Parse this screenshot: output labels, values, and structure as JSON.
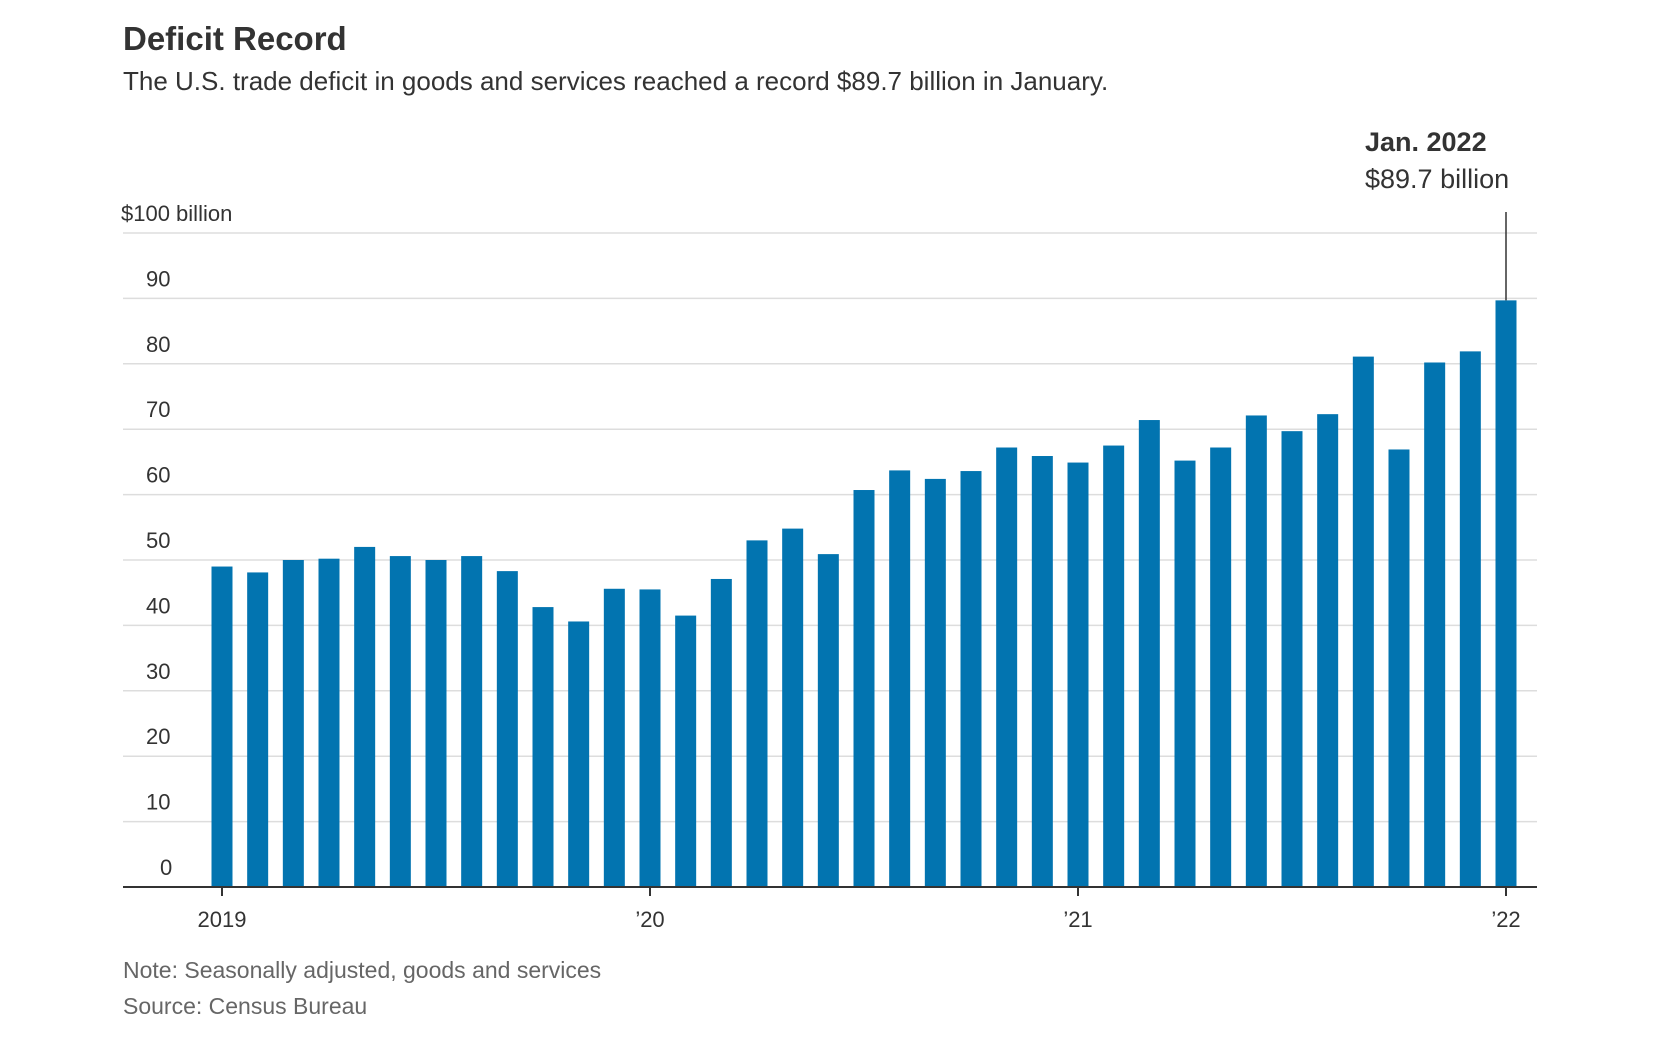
{
  "chart_data": {
    "type": "bar",
    "title": "Deficit Record",
    "subtitle": "The U.S. trade deficit in goods and services reached a record $89.7 billion in January.",
    "x": [
      "2019-01",
      "2019-02",
      "2019-03",
      "2019-04",
      "2019-05",
      "2019-06",
      "2019-07",
      "2019-08",
      "2019-09",
      "2019-10",
      "2019-11",
      "2019-12",
      "2020-01",
      "2020-02",
      "2020-03",
      "2020-04",
      "2020-05",
      "2020-06",
      "2020-07",
      "2020-08",
      "2020-09",
      "2020-10",
      "2020-11",
      "2020-12",
      "2021-01",
      "2021-02",
      "2021-03",
      "2021-04",
      "2021-05",
      "2021-06",
      "2021-07",
      "2021-08",
      "2021-09",
      "2021-10",
      "2021-11",
      "2021-12",
      "2022-01"
    ],
    "values": [
      49.0,
      48.1,
      50.0,
      50.2,
      52.0,
      50.6,
      50.0,
      50.6,
      48.3,
      42.8,
      40.6,
      45.6,
      45.5,
      41.5,
      47.1,
      53.0,
      54.8,
      50.9,
      60.7,
      63.7,
      62.4,
      63.6,
      67.2,
      65.9,
      64.9,
      67.5,
      71.4,
      65.2,
      67.2,
      72.1,
      69.7,
      72.3,
      81.1,
      66.9,
      80.2,
      81.9,
      89.7
    ],
    "xlabel": "",
    "ylabel": "",
    "ylim": [
      0,
      100
    ],
    "yticks": [
      0,
      10,
      20,
      30,
      40,
      50,
      60,
      70,
      80,
      90,
      100
    ],
    "ytick_labels": [
      "0",
      "10",
      "20",
      "30",
      "40",
      "50",
      "60",
      "70",
      "80",
      "90",
      "$100 billion"
    ],
    "xticks": [
      {
        "x": "2019-01",
        "label": "2019"
      },
      {
        "x": "2020-01",
        "label": "’20"
      },
      {
        "x": "2021-01",
        "label": "’21"
      },
      {
        "x": "2022-01",
        "label": "’22"
      }
    ],
    "grid": true,
    "bar_color": "#0274b0",
    "annotation": {
      "x": "2022-01",
      "label": "Jan. 2022",
      "value_label": "$89.7 billion"
    },
    "note": "Note: Seasonally adjusted, goods and services",
    "source": "Source: Census Bureau"
  }
}
